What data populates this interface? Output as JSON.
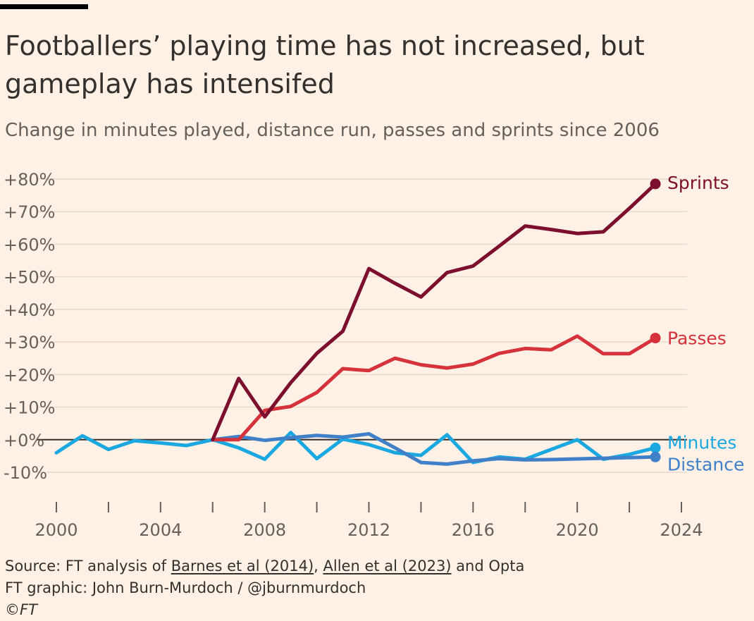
{
  "header": {
    "title": "Footballers’ playing time has not increased, but gameplay has intensifed",
    "subtitle": "Change in minutes played, distance run, passes and sprints since 2006"
  },
  "footer": {
    "source_prefix": "Source: FT analysis of ",
    "source_link1": "Barnes et al (2014)",
    "source_sep": ", ",
    "source_link2": "Allen et al (2023)",
    "source_suffix": " and Opta",
    "credit": "FT graphic: John Burn-Murdoch / @jburnmurdoch",
    "copyright": "©FT"
  },
  "chart_data": {
    "type": "line",
    "title": "Footballers’ playing time has not increased, but gameplay has intensifed",
    "subtitle": "Change in minutes played, distance run, passes and sprints since 2006",
    "xlim": [
      2000,
      2024
    ],
    "ylim": [
      -10,
      80
    ],
    "x_ticks": [
      2000,
      2002,
      2004,
      2006,
      2008,
      2010,
      2012,
      2014,
      2016,
      2018,
      2020,
      2022,
      2024
    ],
    "x_tick_labels": [
      "2000",
      "2004",
      "2008",
      "2012",
      "2016",
      "2020",
      "2024"
    ],
    "y_ticks": [
      -10,
      0,
      10,
      20,
      30,
      40,
      50,
      60,
      70,
      80
    ],
    "y_tick_labels": [
      "-10%",
      "+0%",
      "+10%",
      "+20%",
      "+30%",
      "+40%",
      "+50%",
      "+60%",
      "+70%",
      "+80%"
    ],
    "grid": true,
    "series": [
      {
        "name": "Minutes",
        "color": "#1ba8e0",
        "x": [
          2000,
          2001,
          2002,
          2003,
          2004,
          2005,
          2006,
          2007,
          2008,
          2009,
          2010,
          2011,
          2012,
          2013,
          2014,
          2015,
          2016,
          2017,
          2018,
          2019,
          2020,
          2021,
          2022,
          2023
        ],
        "values": [
          -4,
          1.2,
          -3,
          -0.3,
          -1,
          -1.8,
          0,
          -2.5,
          -6,
          2.2,
          -5.8,
          0.2,
          -1.5,
          -4,
          -4.8,
          1.5,
          -7,
          -5.3,
          -6,
          -3,
          0,
          -6,
          -4.5,
          -2.5
        ]
      },
      {
        "name": "Distance",
        "color": "#3f80c9",
        "x": [
          2006,
          2007,
          2008,
          2009,
          2010,
          2011,
          2012,
          2013,
          2014,
          2015,
          2016,
          2017,
          2018,
          2019,
          2020,
          2021,
          2022,
          2023
        ],
        "values": [
          0,
          1,
          -0.2,
          0.6,
          1.3,
          0.8,
          1.8,
          -2.5,
          -7,
          -7.5,
          -6.5,
          -5.8,
          -6.2,
          -6.1,
          -5.9,
          -5.7,
          -5.5,
          -5.3
        ]
      },
      {
        "name": "Passes",
        "color": "#d6323c",
        "x": [
          2006,
          2007,
          2008,
          2009,
          2010,
          2011,
          2012,
          2013,
          2014,
          2015,
          2016,
          2017,
          2018,
          2019,
          2020,
          2021,
          2022,
          2023
        ],
        "values": [
          0,
          0,
          9,
          10.2,
          14.5,
          21.8,
          21.2,
          25,
          23,
          22,
          23.2,
          26.5,
          28,
          27.6,
          31.8,
          26.4,
          26.4,
          31.2
        ]
      },
      {
        "name": "Sprints",
        "color": "#7d0f2e",
        "x": [
          2006,
          2007,
          2008,
          2009,
          2010,
          2011,
          2012,
          2013,
          2014,
          2015,
          2016,
          2017,
          2018,
          2019,
          2020,
          2021,
          2022,
          2023
        ],
        "values": [
          0,
          18.8,
          7,
          17.5,
          26.5,
          33.3,
          52.5,
          48,
          43.8,
          51.3,
          53.3,
          59.4,
          65.6,
          64.5,
          63.3,
          63.8,
          71,
          78.5
        ]
      }
    ]
  }
}
